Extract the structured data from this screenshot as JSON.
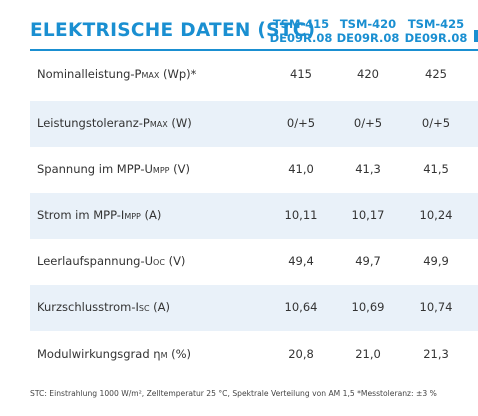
{
  "header": {
    "title": "ELEKTRISCHE DATEN (STC)",
    "columns": [
      {
        "model": "TSM-415",
        "variant": "DE09R.08"
      },
      {
        "model": "TSM-420",
        "variant": "DE09R.08"
      },
      {
        "model": "TSM-425",
        "variant": "DE09R.08"
      }
    ]
  },
  "rows": [
    {
      "pre": "Nominalleistung-P",
      "sub": "max",
      "post": " (Wp)*",
      "values": [
        "415",
        "420",
        "425"
      ]
    },
    {
      "pre": "Leistungstoleranz-P",
      "sub": "max",
      "post": " (W)",
      "values": [
        "0/+5",
        "0/+5",
        "0/+5"
      ]
    },
    {
      "pre": "Spannung im MPP-U",
      "sub": "mpp",
      "post": " (V)",
      "values": [
        "41,0",
        "41,3",
        "41,5"
      ]
    },
    {
      "pre": "Strom im MPP-I",
      "sub": "mpp",
      "post": " (A)",
      "values": [
        "10,11",
        "10,17",
        "10,24"
      ]
    },
    {
      "pre": "Leerlaufspannung-U",
      "sub": "oc",
      "post": " (V)",
      "values": [
        "49,4",
        "49,7",
        "49,9"
      ]
    },
    {
      "pre": "Kurzschlusstrom-I",
      "sub": "sc",
      "post": " (A)",
      "values": [
        "10,64",
        "10,69",
        "10,74"
      ]
    },
    {
      "pre": "Modulwirkungsgrad η",
      "sub": "m",
      "post": " (%)",
      "values": [
        "20,8",
        "21,0",
        "21,3"
      ]
    }
  ],
  "footnote": "STC: Einstrahlung 1000 W/m², Zelltemperatur 25 °C, Spektrale Verteilung von AM 1,5   *Messtoleranz: ±3 %",
  "colors": {
    "accent": "#1a8fd1",
    "row_shade": "#e9f1f9",
    "text": "#333333"
  }
}
